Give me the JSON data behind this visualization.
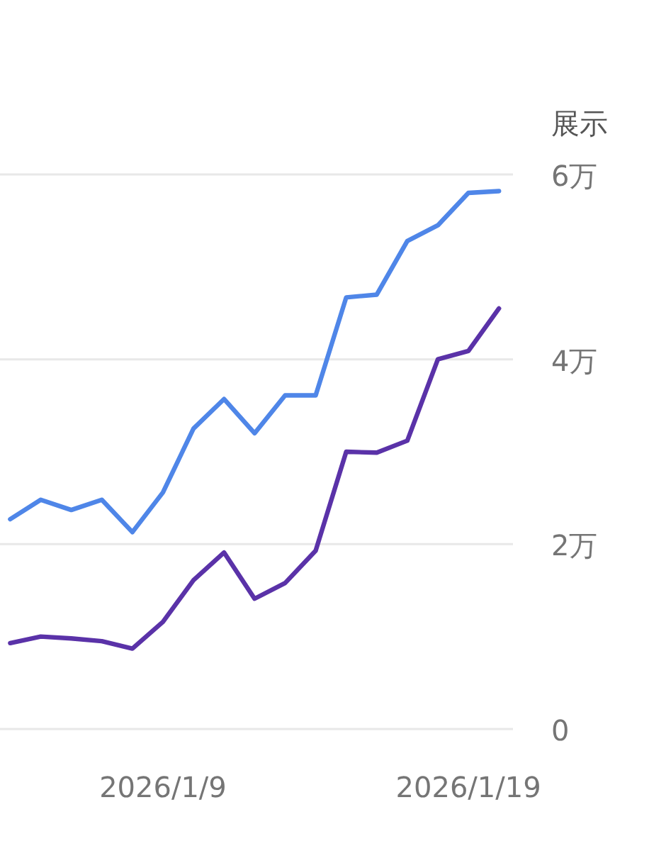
{
  "chart_data": {
    "type": "line",
    "ylabel": "展示",
    "x": [
      "2026-01-04",
      "2026-01-05",
      "2026-01-06",
      "2026-01-07",
      "2026-01-08",
      "2026-01-09",
      "2026-01-10",
      "2026-01-11",
      "2026-01-12",
      "2026-01-13",
      "2026-01-14",
      "2026-01-15",
      "2026-01-16",
      "2026-01-17",
      "2026-01-18",
      "2026-01-19",
      "2026-01-20"
    ],
    "series": [
      {
        "color": "#4f86e8",
        "values": [
          2.27,
          2.48,
          2.37,
          2.48,
          2.13,
          2.56,
          3.25,
          3.57,
          3.2,
          3.61,
          3.61,
          4.67,
          4.7,
          5.28,
          5.45,
          5.8,
          5.82
        ]
      },
      {
        "color": "#5a32a8",
        "values": [
          0.93,
          1.0,
          0.98,
          0.95,
          0.87,
          1.16,
          1.61,
          1.91,
          1.41,
          1.58,
          1.93,
          3.0,
          2.99,
          3.12,
          4.0,
          4.09,
          4.55
        ]
      }
    ],
    "xlim": [
      "2026-01-03T16:00",
      "2026-01-20T11:00"
    ],
    "xticks": [
      {
        "value": "2026-01-09",
        "label": "2026/1/9"
      },
      {
        "value": "2026-01-19",
        "label": "2026/1/19"
      }
    ],
    "ylim": [
      0,
      6
    ],
    "yticks": [
      0,
      {
        "value": 2,
        "label": "2万"
      },
      {
        "value": 4,
        "label": "4万"
      },
      {
        "value": 6,
        "label": "6万"
      }
    ],
    "grid": "y",
    "marker": "none",
    "line_style": "solid"
  }
}
